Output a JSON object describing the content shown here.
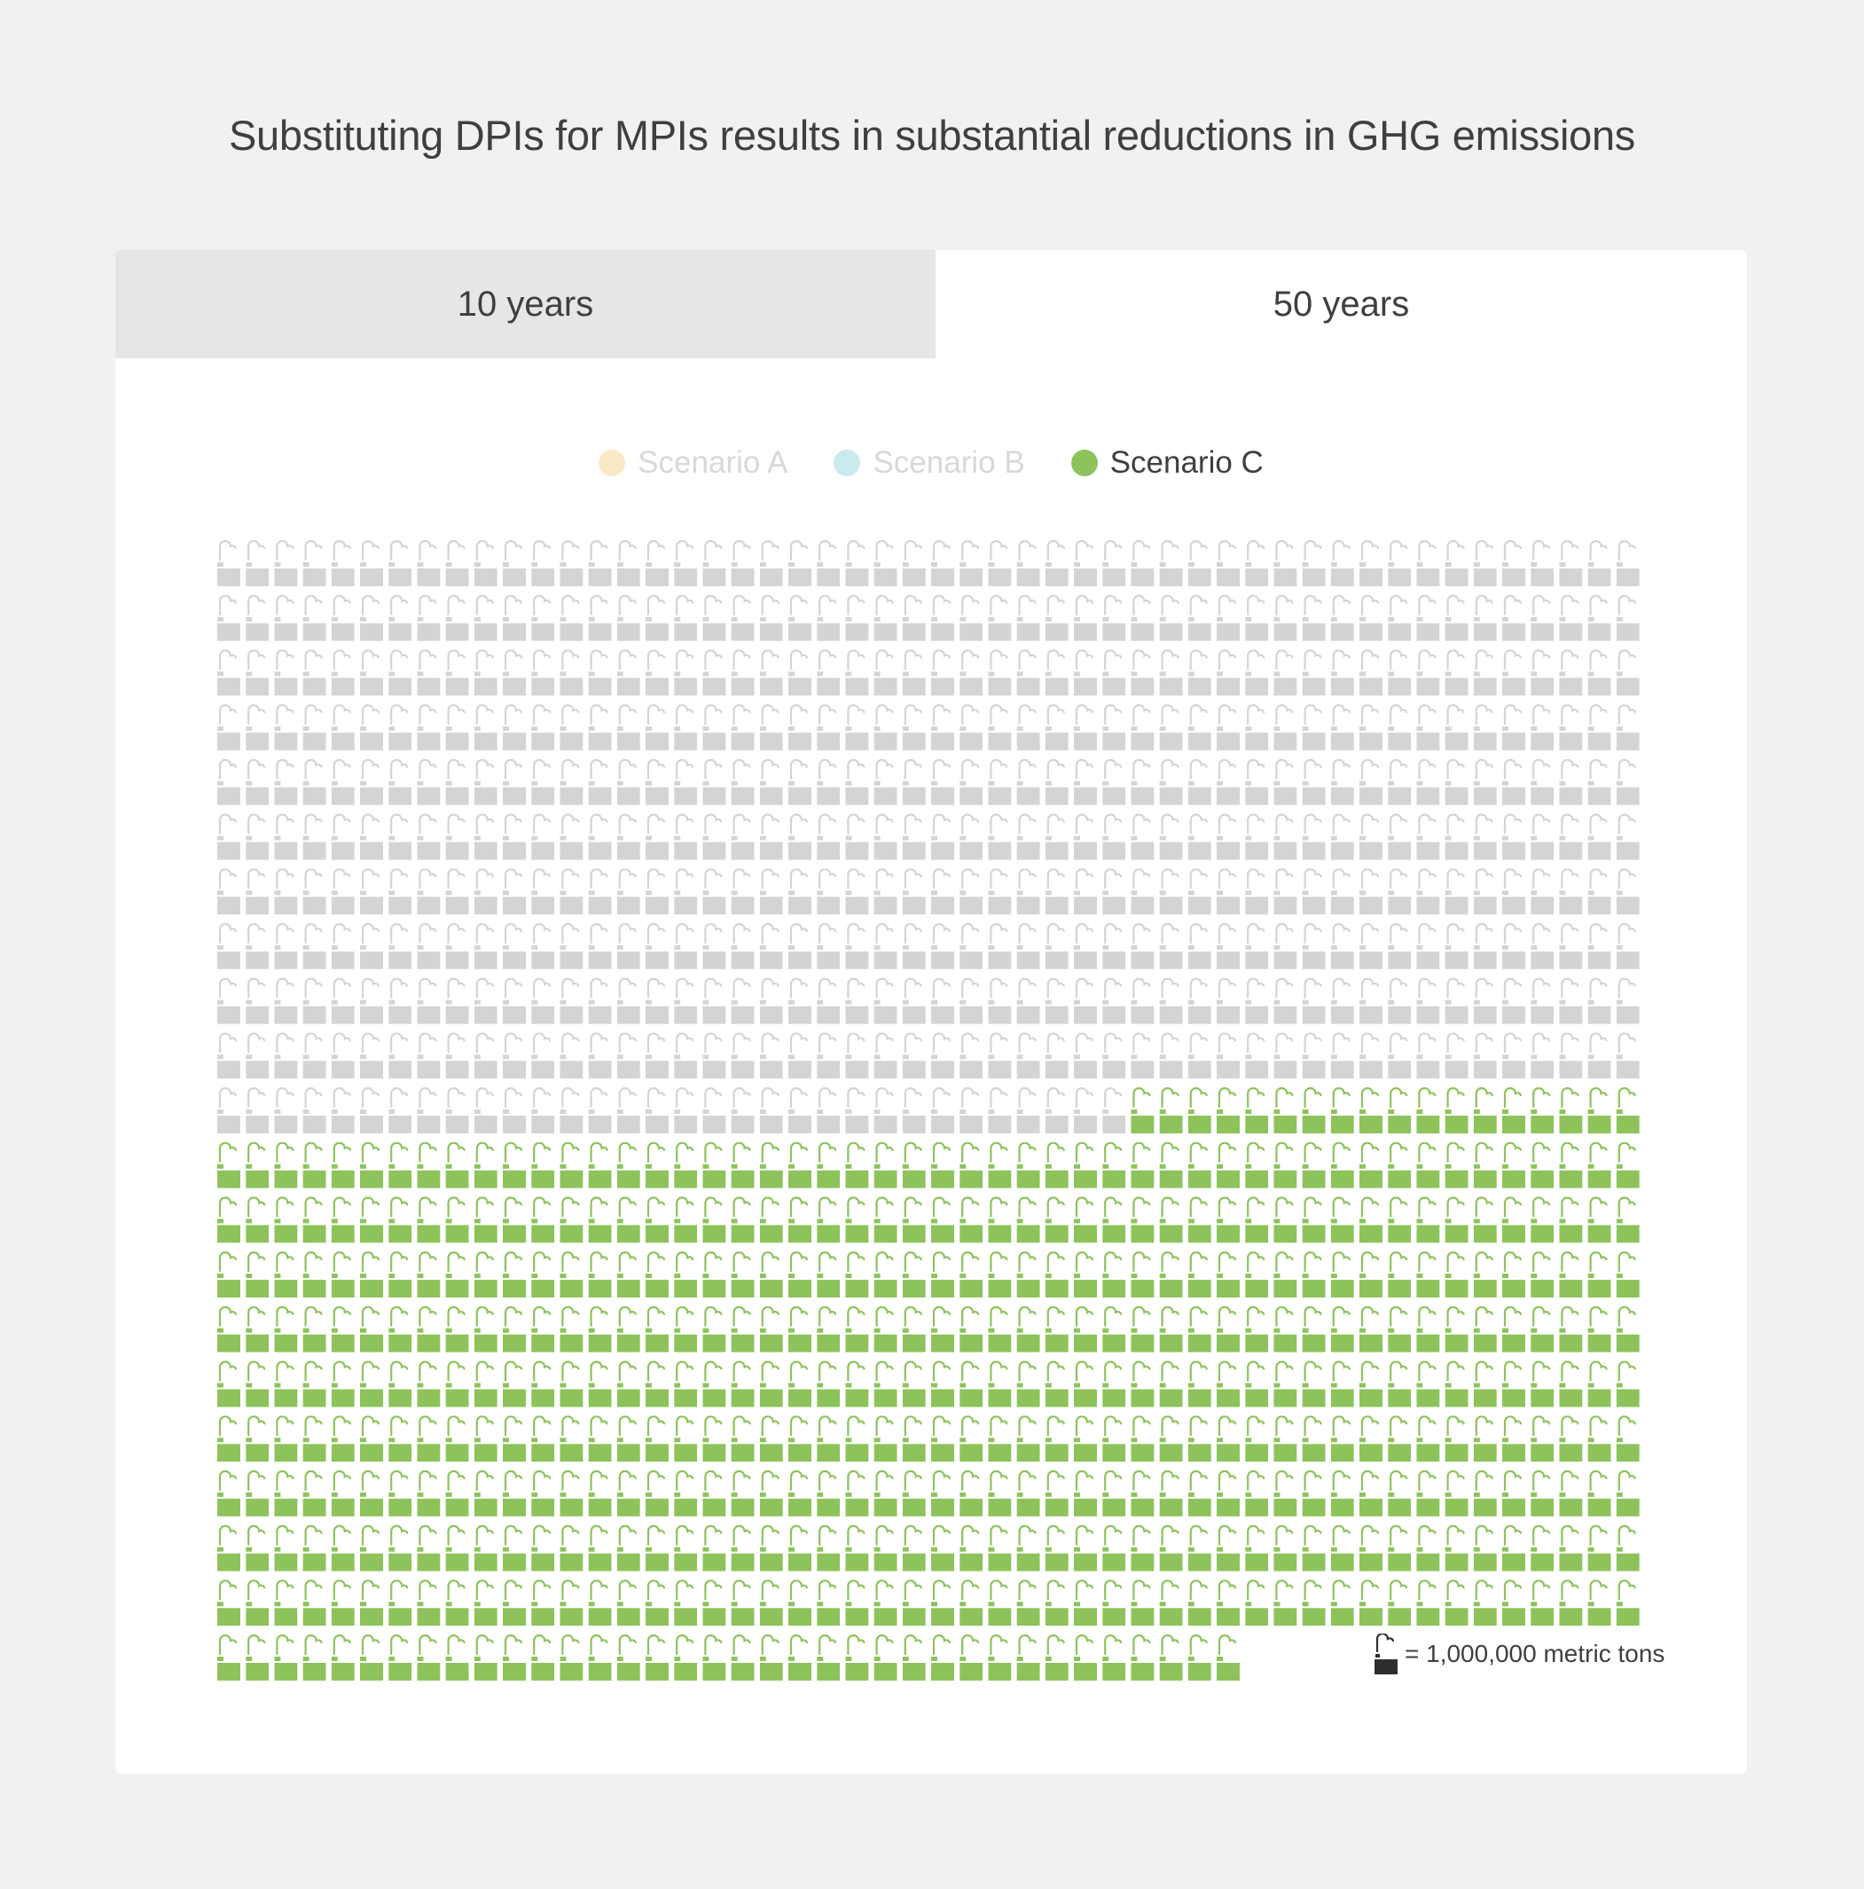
{
  "title": "Substituting DPIs for MPIs results in substantial reductions in GHG emissions",
  "tabs": [
    {
      "label": "10 years",
      "active": false
    },
    {
      "label": "50 years",
      "active": true
    }
  ],
  "legend": [
    {
      "label": "Scenario A",
      "color": "#fbe8c6",
      "text_color": "#d8d8d8",
      "active": false
    },
    {
      "label": "Scenario B",
      "color": "#c9ebee",
      "text_color": "#d8d8d8",
      "active": false
    },
    {
      "label": "Scenario C",
      "color": "#8dc35a",
      "text_color": "#3f3f3f",
      "active": true
    }
  ],
  "key": {
    "label": "= 1,000,000 metric tons",
    "icon": "factory-icon",
    "icon_color": "#2e2e2e"
  },
  "chart_data": {
    "type": "pictogram",
    "unit": "1,000,000 metric tons",
    "icon": "factory-icon",
    "icons_per_row": 50,
    "series": [
      {
        "name": "Scenario C",
        "total_units": 1036,
        "reduction_units": 504,
        "total_color": "#d3d4d6",
        "reduction_color": "#8dc35a"
      }
    ]
  }
}
